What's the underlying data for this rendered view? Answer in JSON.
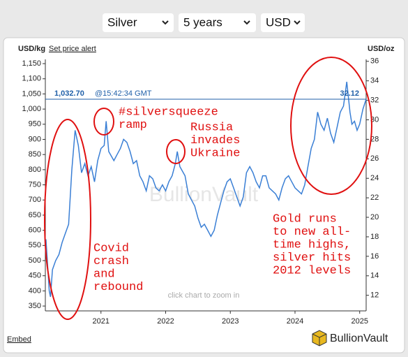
{
  "controls": {
    "metal": "Silver",
    "period": "5 years",
    "currency": "USD"
  },
  "header": {
    "left_unit": "USD/kg",
    "alert_link": "Set price alert",
    "right_unit": "USD/oz"
  },
  "footer": {
    "embed": "Embed",
    "brand": "BullionVault"
  },
  "chart_data": {
    "type": "line",
    "watermark": "BullionVault",
    "hint": "click chart to zoom in",
    "x": [
      2020.15,
      2020.2,
      2020.22,
      2020.25,
      2020.3,
      2020.35,
      2020.4,
      2020.45,
      2020.5,
      2020.55,
      2020.6,
      2020.65,
      2020.7,
      2020.75,
      2020.8,
      2020.85,
      2020.9,
      2020.95,
      2021.0,
      2021.05,
      2021.08,
      2021.12,
      2021.2,
      2021.25,
      2021.3,
      2021.35,
      2021.4,
      2021.45,
      2021.5,
      2021.55,
      2021.6,
      2021.65,
      2021.7,
      2021.75,
      2021.8,
      2021.85,
      2021.9,
      2021.95,
      2022.0,
      2022.05,
      2022.1,
      2022.15,
      2022.18,
      2022.22,
      2022.3,
      2022.35,
      2022.4,
      2022.45,
      2022.5,
      2022.55,
      2022.6,
      2022.65,
      2022.7,
      2022.75,
      2022.8,
      2022.85,
      2022.9,
      2022.95,
      2023.0,
      2023.05,
      2023.1,
      2023.15,
      2023.2,
      2023.25,
      2023.3,
      2023.35,
      2023.4,
      2023.45,
      2023.5,
      2023.55,
      2023.6,
      2023.65,
      2023.7,
      2023.75,
      2023.8,
      2023.85,
      2023.9,
      2023.95,
      2024.0,
      2024.05,
      2024.1,
      2024.15,
      2024.2,
      2024.25,
      2024.3,
      2024.35,
      2024.4,
      2024.45,
      2024.5,
      2024.55,
      2024.6,
      2024.65,
      2024.7,
      2024.75,
      2024.8,
      2024.85,
      2024.88,
      2024.92,
      2024.96,
      2025.0,
      2025.05,
      2025.1
    ],
    "series": [
      {
        "name": "Silver",
        "color": "#3a7fd5",
        "values": [
          570,
          400,
          380,
          470,
          500,
          520,
          560,
          590,
          620,
          800,
          930,
          880,
          790,
          820,
          780,
          810,
          760,
          830,
          870,
          880,
          960,
          860,
          830,
          850,
          870,
          900,
          890,
          860,
          820,
          830,
          780,
          760,
          730,
          780,
          770,
          740,
          730,
          750,
          730,
          760,
          780,
          820,
          860,
          810,
          780,
          720,
          700,
          680,
          640,
          610,
          620,
          600,
          580,
          600,
          650,
          690,
          730,
          760,
          770,
          740,
          710,
          680,
          710,
          790,
          810,
          790,
          760,
          740,
          780,
          780,
          740,
          730,
          720,
          700,
          740,
          770,
          780,
          760,
          740,
          730,
          720,
          750,
          810,
          870,
          900,
          990,
          950,
          930,
          970,
          920,
          890,
          940,
          990,
          1010,
          1090,
          990,
          950,
          960,
          930,
          950,
          1000,
          1032.7
        ]
      }
    ],
    "xlim": [
      2020.14,
      2025.1
    ],
    "xticks": [
      2021,
      2022,
      2023,
      2024,
      2025
    ],
    "ylim": [
      334,
      1164
    ],
    "yticks": [
      350,
      400,
      450,
      500,
      550,
      600,
      650,
      700,
      750,
      800,
      850,
      900,
      950,
      {
        "value": 1000,
        "label": "1,000"
      },
      {
        "value": 1050,
        "label": "1,050"
      },
      {
        "value": 1100,
        "label": "1,100"
      },
      {
        "value": 1150,
        "label": "1,150"
      }
    ],
    "y2lim": [
      10.4,
      36.2
    ],
    "y2ticks": [
      12,
      14,
      16,
      18,
      20,
      22,
      24,
      26,
      28,
      30,
      32,
      34,
      36
    ],
    "grid": false,
    "current": {
      "value": 1032.7,
      "label": "1,032.70",
      "time": "@15:42:34 GMT",
      "oz_label": 32.12
    },
    "annotations": [
      [
        "#silversqueeze",
        "ramp"
      ],
      [
        "Russia",
        "invades",
        "Ukraine"
      ],
      [
        "Covid",
        "crash",
        "and",
        "rebound"
      ],
      [
        "Gold runs",
        "to new all-",
        "time highs,",
        "silver hits",
        "2012 levels"
      ]
    ]
  }
}
